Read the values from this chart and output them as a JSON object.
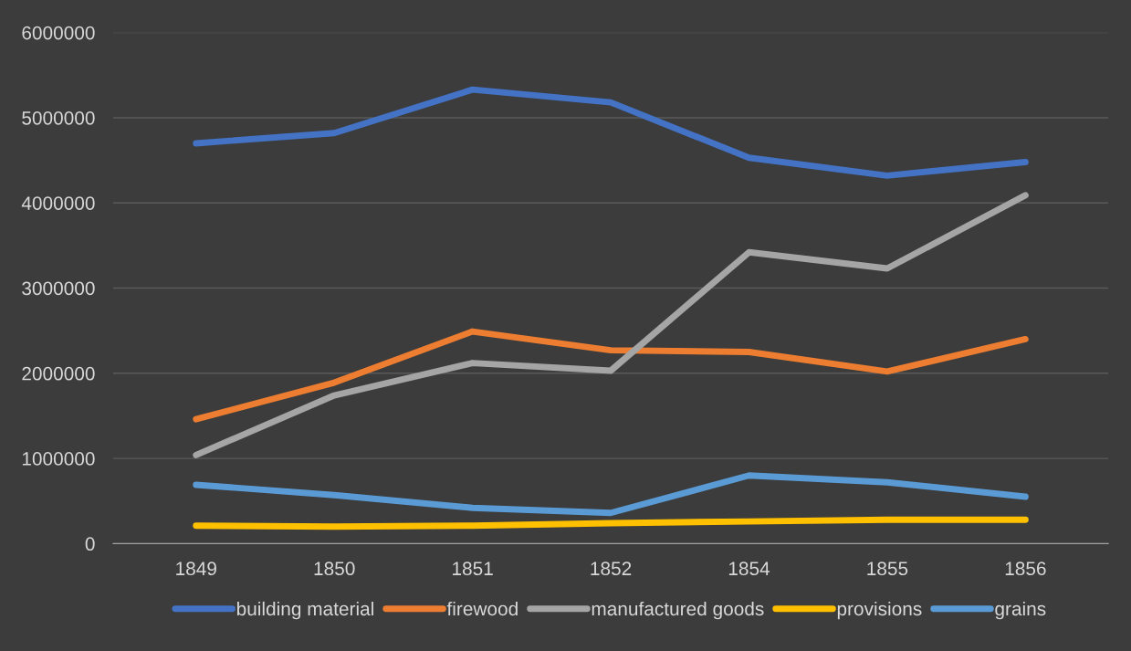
{
  "chart_data": {
    "type": "line",
    "categories": [
      "1849",
      "1850",
      "1851",
      "1852",
      "1854",
      "1855",
      "1856"
    ],
    "series": [
      {
        "name": "building material",
        "color": "#4472c4",
        "values": [
          4700000,
          4820000,
          5330000,
          5180000,
          4530000,
          4320000,
          4480000
        ]
      },
      {
        "name": "firewood",
        "color": "#ed7d31",
        "values": [
          1460000,
          1890000,
          2490000,
          2270000,
          2250000,
          2020000,
          2400000
        ]
      },
      {
        "name": "manufactured goods",
        "color": "#a5a5a5",
        "values": [
          1040000,
          1740000,
          2120000,
          2030000,
          3420000,
          3230000,
          4090000
        ]
      },
      {
        "name": "provisions",
        "color": "#ffc000",
        "values": [
          210000,
          200000,
          210000,
          240000,
          260000,
          280000,
          280000
        ]
      },
      {
        "name": "grains",
        "color": "#5b9bd5",
        "values": [
          690000,
          570000,
          420000,
          360000,
          800000,
          720000,
          550000
        ]
      }
    ],
    "ylim": [
      0,
      6000000
    ],
    "yticks": [
      0,
      1000000,
      2000000,
      3000000,
      4000000,
      5000000,
      6000000
    ],
    "grid": "y",
    "legend": "bottom",
    "marker": "none",
    "line_style": "solid"
  }
}
